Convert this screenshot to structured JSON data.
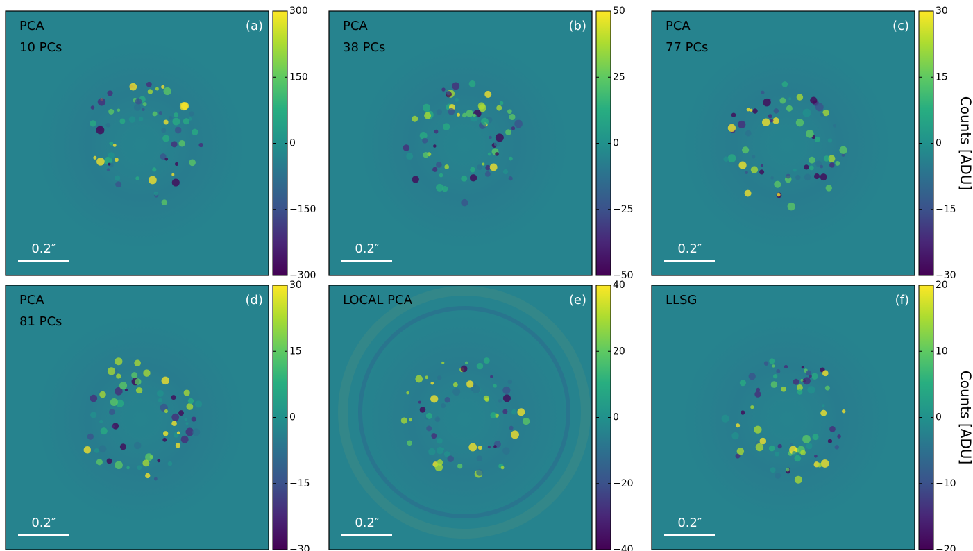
{
  "chart_data": [
    {
      "type": "image",
      "label": "PCA",
      "sublabel": "10 PCs",
      "panel": "(a)",
      "scalebar": "0.2″",
      "colormap": "viridis",
      "clim": [
        -300,
        300
      ],
      "cticks": [
        {
          "value": -300,
          "label": "−300"
        },
        {
          "value": -150,
          "label": "−150"
        },
        0,
        150,
        300
      ]
    },
    {
      "type": "image",
      "label": "PCA",
      "sublabel": "38 PCs",
      "panel": "(b)",
      "scalebar": "0.2″",
      "colormap": "viridis",
      "clim": [
        -50,
        50
      ],
      "cticks": [
        {
          "value": -50,
          "label": "−50"
        },
        {
          "value": -25,
          "label": "−25"
        },
        0,
        25,
        50
      ]
    },
    {
      "type": "image",
      "label": "PCA",
      "sublabel": "77 PCs",
      "panel": "(c)",
      "scalebar": "0.2″",
      "colormap": "viridis",
      "clim": [
        -30,
        30
      ],
      "cticks": [
        {
          "value": -30,
          "label": "−30"
        },
        {
          "value": -15,
          "label": "−15"
        },
        0,
        15,
        30
      ],
      "colorbar_label": "Counts [ADU]"
    },
    {
      "type": "image",
      "label": "PCA",
      "sublabel": "81 PCs",
      "panel": "(d)",
      "scalebar": "0.2″",
      "colormap": "viridis",
      "clim": [
        -30,
        30
      ],
      "cticks": [
        {
          "value": -30,
          "label": "−30"
        },
        {
          "value": -15,
          "label": "−15"
        },
        0,
        15,
        30
      ]
    },
    {
      "type": "image",
      "label": "LOCAL PCA",
      "panel": "(e)",
      "scalebar": "0.2″",
      "colormap": "viridis",
      "clim": [
        -40,
        40
      ],
      "cticks": [
        {
          "value": -40,
          "label": "−40"
        },
        {
          "value": -20,
          "label": "−20"
        },
        0,
        20,
        40
      ]
    },
    {
      "type": "image",
      "label": "LLSG",
      "panel": "(f)",
      "scalebar": "0.2″",
      "colormap": "viridis",
      "clim": [
        -20,
        20
      ],
      "cticks": [
        {
          "value": -20,
          "label": "−20"
        },
        {
          "value": -10,
          "label": "−10"
        },
        0,
        10,
        20
      ],
      "colorbar_label": "Counts [ADU]"
    }
  ]
}
